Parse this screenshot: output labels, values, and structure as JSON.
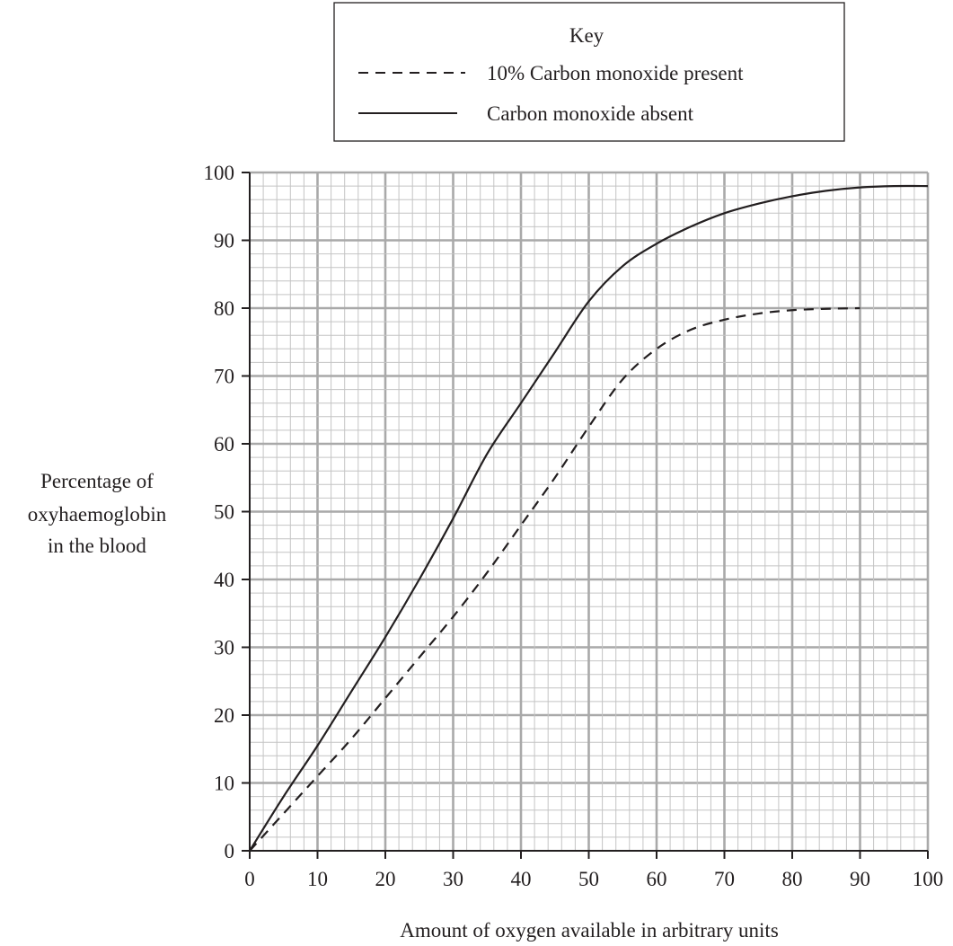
{
  "chart_data": {
    "type": "line",
    "title": "",
    "xlabel": "Amount of oxygen available in arbitrary units",
    "ylabel_lines": [
      "Percentage of",
      "oxyhaemoglobin",
      "in the blood"
    ],
    "xlim": [
      0,
      100
    ],
    "ylim": [
      0,
      100
    ],
    "x_ticks": [
      0,
      10,
      20,
      30,
      40,
      50,
      60,
      70,
      80,
      90,
      100
    ],
    "y_ticks": [
      0,
      10,
      20,
      30,
      40,
      50,
      60,
      70,
      80,
      90,
      100
    ],
    "grid": true,
    "legend": {
      "title": "Key",
      "position": "top"
    },
    "series": [
      {
        "name": "10% Carbon monoxide present",
        "line_style": "dashed",
        "color": "#231f20",
        "x": [
          0,
          5,
          10,
          15,
          20,
          25,
          30,
          35,
          40,
          45,
          50,
          55,
          60,
          65,
          70,
          75,
          80,
          85,
          90
        ],
        "y": [
          0,
          5.5,
          11,
          16.5,
          22.5,
          28.5,
          34.5,
          41,
          48,
          55,
          62.5,
          69.5,
          74,
          76.8,
          78.3,
          79.2,
          79.7,
          79.9,
          80
        ]
      },
      {
        "name": "Carbon monoxide absent",
        "line_style": "solid",
        "color": "#231f20",
        "x": [
          0,
          5,
          10,
          15,
          20,
          25,
          30,
          35,
          40,
          45,
          50,
          55,
          60,
          65,
          70,
          75,
          80,
          85,
          90,
          95,
          100
        ],
        "y": [
          0,
          8,
          15.5,
          23.5,
          31.5,
          40,
          49,
          58.5,
          66,
          73.5,
          81,
          86.2,
          89.5,
          92,
          94,
          95.4,
          96.5,
          97.3,
          97.8,
          98,
          98
        ]
      }
    ]
  }
}
